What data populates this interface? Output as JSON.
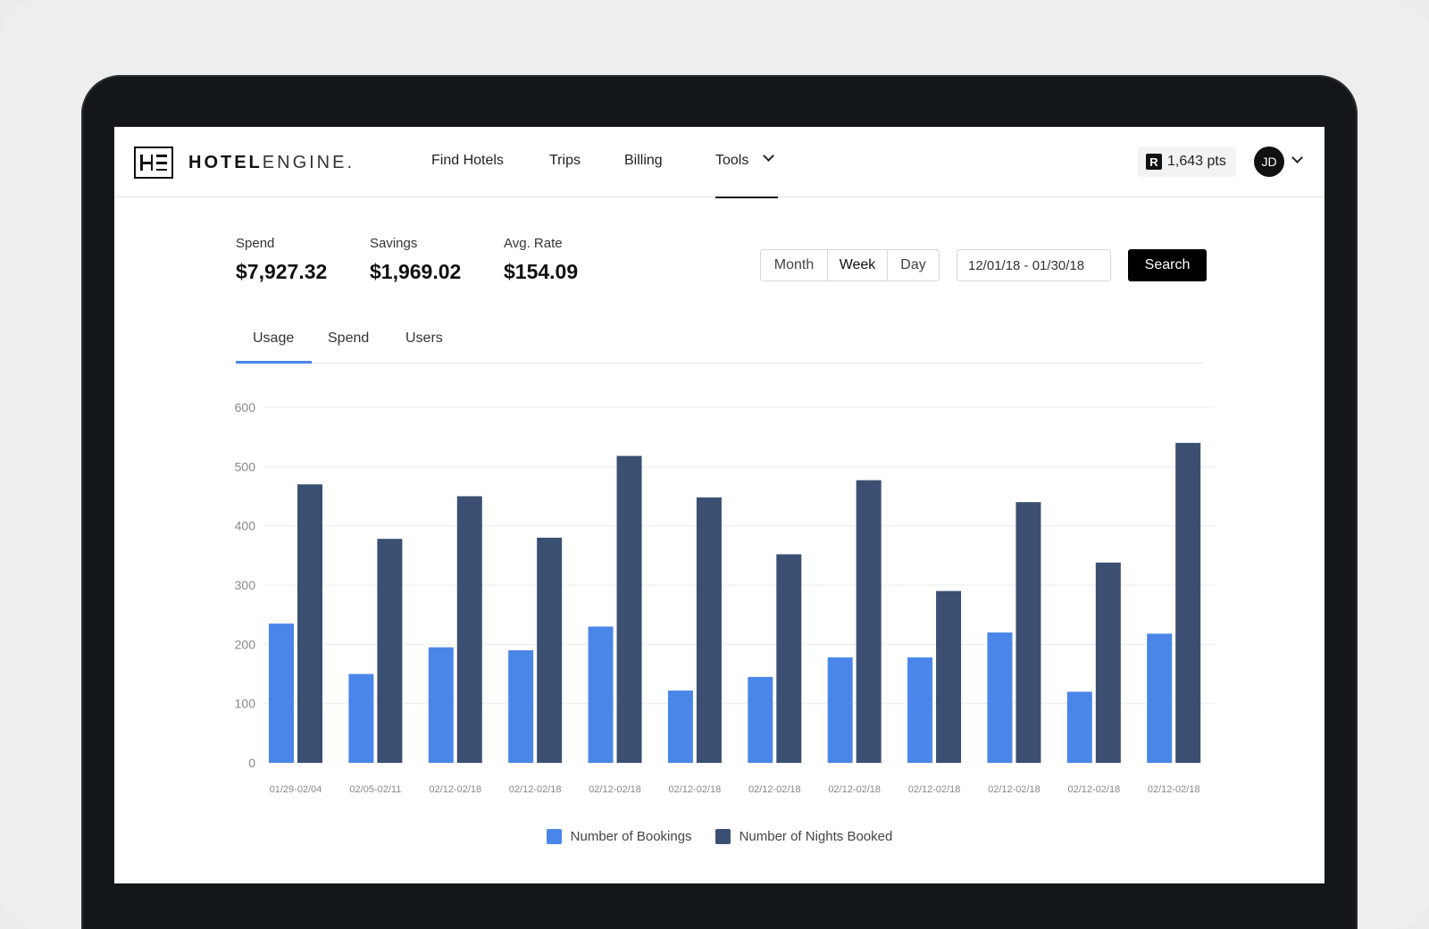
{
  "brand": {
    "bold": "HOTEL",
    "light": "ENGINE."
  },
  "nav": {
    "find_hotels": "Find Hotels",
    "trips": "Trips",
    "billing": "Billing",
    "tools": "Tools"
  },
  "user": {
    "points": "1,643 pts",
    "points_badge": "R",
    "initials": "JD"
  },
  "stats": {
    "spend": {
      "label": "Spend",
      "value": "$7,927.32"
    },
    "savings": {
      "label": "Savings",
      "value": "$1,969.02"
    },
    "avg_rate": {
      "label": "Avg. Rate",
      "value": "$154.09"
    }
  },
  "period": {
    "month": "Month",
    "week": "Week",
    "day": "Day",
    "selected": "Week"
  },
  "date_range": {
    "value": "12/01/18 - 01/30/18"
  },
  "search_label": "Search",
  "tabs": {
    "usage": "Usage",
    "spend": "Spend",
    "users": "Users",
    "active": "Usage"
  },
  "colors": {
    "bookings": "#4a86e8",
    "nights": "#3b4f72",
    "accent": "#4a86e8"
  },
  "chart_data": {
    "type": "bar",
    "categories": [
      "01/29-02/04",
      "02/05-02/11",
      "02/12-02/18",
      "02/12-02/18",
      "02/12-02/18",
      "02/12-02/18",
      "02/12-02/18",
      "02/12-02/18",
      "02/12-02/18",
      "02/12-02/18",
      "02/12-02/18",
      "02/12-02/18"
    ],
    "series": [
      {
        "name": "Number of Bookings",
        "values": [
          235,
          150,
          195,
          190,
          230,
          122,
          145,
          178,
          178,
          220,
          120,
          218
        ]
      },
      {
        "name": "Number of Nights Booked",
        "values": [
          470,
          378,
          450,
          380,
          518,
          448,
          352,
          477,
          290,
          440,
          338,
          540
        ]
      }
    ],
    "yticks": [
      0,
      100,
      200,
      300,
      400,
      500,
      600
    ],
    "ylim": [
      0,
      600
    ],
    "grid": true,
    "legend": "bottom-center"
  }
}
